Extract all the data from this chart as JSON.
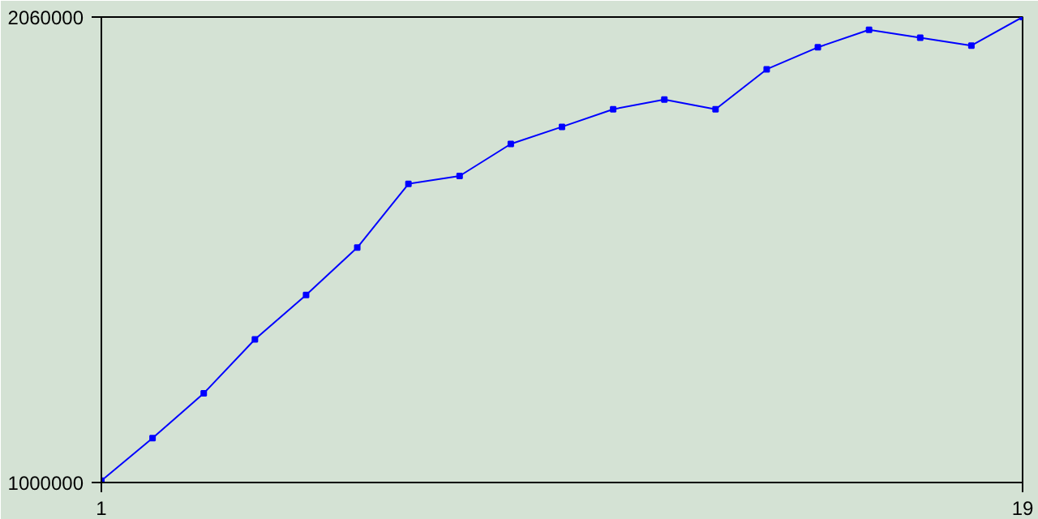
{
  "chart_data": {
    "type": "line",
    "x": [
      1,
      2,
      3,
      4,
      5,
      6,
      7,
      8,
      9,
      10,
      11,
      12,
      13,
      14,
      15,
      16,
      17,
      18,
      19
    ],
    "series": [
      {
        "color": "#0000ff",
        "values": [
          1004000,
          1101000,
          1203000,
          1326000,
          1427000,
          1535000,
          1680000,
          1698000,
          1771000,
          1810000,
          1850000,
          1872000,
          1850000,
          1941000,
          1991000,
          2031000,
          2013000,
          1995000,
          2060000
        ]
      }
    ],
    "xlim": [
      1,
      19
    ],
    "ylim": [
      1000000,
      2060000
    ],
    "xticks": [
      1,
      19
    ],
    "yticks": [
      1000000,
      2060000
    ],
    "marker": "square",
    "line_style": "solid"
  }
}
